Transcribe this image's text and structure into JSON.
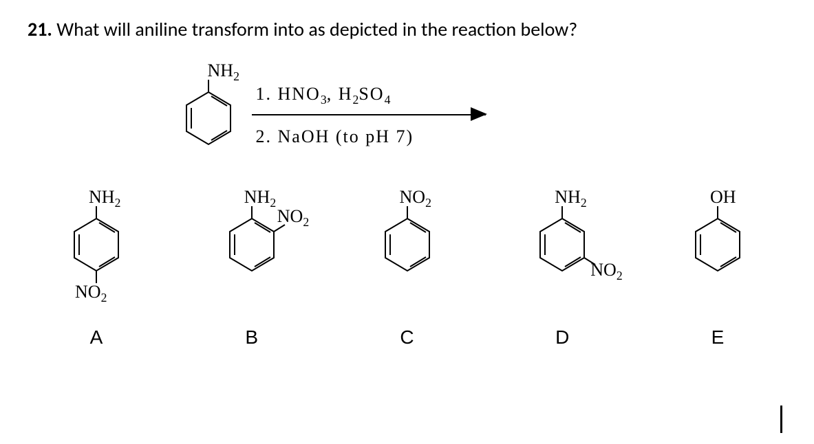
{
  "question": {
    "number": "21.",
    "text": "What will aniline transform into as depicted in the reaction below?"
  },
  "reactant": {
    "top_label_html": "NH<sub>2</sub>"
  },
  "conditions": {
    "line1_html": "1. HNO<sub>3</sub>, H<sub>2</sub>SO<sub>4</sub>",
    "line2_html": "2. NaOH (to pH 7)"
  },
  "choices": [
    {
      "letter": "A",
      "top_html": "NH<sub>2</sub>",
      "bottom_html": "NO<sub>2</sub>",
      "ortho_html": null,
      "meta_html": null
    },
    {
      "letter": "B",
      "top_html": "NH<sub>2</sub>",
      "bottom_html": null,
      "ortho_html": "NO<sub>2</sub>",
      "meta_html": null
    },
    {
      "letter": "C",
      "top_html": "NO<sub>2</sub>",
      "bottom_html": null,
      "ortho_html": null,
      "meta_html": null
    },
    {
      "letter": "D",
      "top_html": "NH<sub>2</sub>",
      "bottom_html": null,
      "ortho_html": null,
      "meta_html": "NO<sub>2</sub>"
    },
    {
      "letter": "E",
      "top_html": "OH",
      "bottom_html": null,
      "ortho_html": null,
      "meta_html": null
    }
  ],
  "colors": {
    "text": "#000000",
    "background": "#ffffff"
  }
}
